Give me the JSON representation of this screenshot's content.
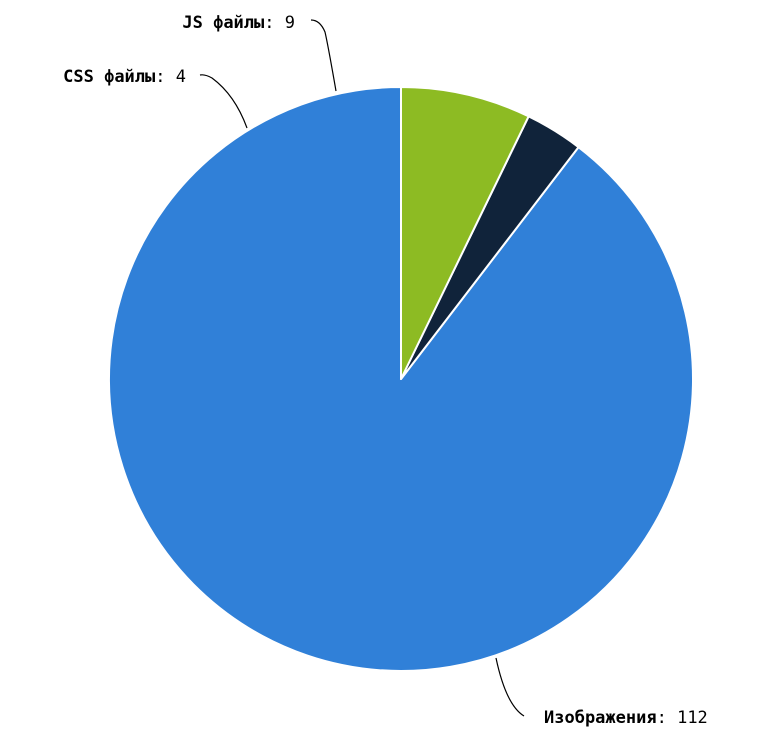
{
  "chart_data": {
    "type": "pie",
    "title": "",
    "slices": [
      {
        "label": "Изображения",
        "value": 112,
        "color": "#3080d8"
      },
      {
        "label": "CSS файлы",
        "value": 4,
        "color": "#10233a"
      },
      {
        "label": "JS файлы",
        "value": 9,
        "color": "#8dbb23"
      }
    ],
    "label_separator": ":",
    "start_angle_deg": 0,
    "direction": "counterclockwise"
  }
}
